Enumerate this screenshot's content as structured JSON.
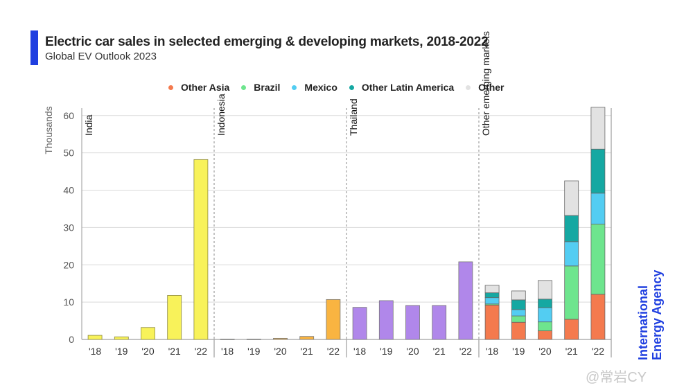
{
  "title": "Electric car sales in selected emerging & developing markets, 2018-2022",
  "subtitle": "Global EV Outlook 2023",
  "brand": {
    "line1": "International",
    "line2": "Energy Agency"
  },
  "watermark": "@常岩CY",
  "colors": {
    "accent": "#1f3fe0",
    "Other Asia": "#f47a4e",
    "Brazil": "#6ee58e",
    "Mexico": "#53cdf2",
    "Other Latin America": "#15a8a2",
    "Other": "#e2e2e2",
    "India": "#f8f25a",
    "India_stroke": "#8a8740",
    "Indonesia": "#f9b441",
    "Thailand": "#b087ea"
  },
  "chart_data": {
    "type": "bar",
    "ylabel": "Thousands",
    "ylim": [
      0,
      62
    ],
    "yticks": [
      "0",
      "10",
      "20",
      "30",
      "40",
      "50",
      "60"
    ],
    "ytick_values": [
      0,
      10,
      20,
      30,
      40,
      50,
      60
    ],
    "grid": true,
    "legend": [
      "Other Asia",
      "Brazil",
      "Mexico",
      "Other Latin America",
      "Other"
    ],
    "legend_placement": "top",
    "x_categories": [
      "'18",
      "'19",
      "'20",
      "'21",
      "'22"
    ],
    "panels": [
      {
        "label": "India",
        "stacked": false,
        "values": [
          1.1,
          0.7,
          3.2,
          11.8,
          48.2
        ]
      },
      {
        "label": "Indonesia",
        "stacked": false,
        "values": [
          0.1,
          0.1,
          0.3,
          0.8,
          10.7
        ]
      },
      {
        "label": "Thailand",
        "stacked": false,
        "values": [
          8.6,
          10.4,
          9.1,
          9.1,
          20.8
        ]
      },
      {
        "label": "Other emerging markets",
        "stacked": true,
        "series": [
          {
            "name": "Other Asia",
            "values": [
              9.2,
              4.6,
              2.3,
              5.4,
              12.1
            ]
          },
          {
            "name": "Brazil",
            "values": [
              0.3,
              1.7,
              2.4,
              14.3,
              18.8
            ]
          },
          {
            "name": "Mexico",
            "values": [
              1.7,
              1.7,
              3.8,
              6.5,
              8.3
            ]
          },
          {
            "name": "Other Latin America",
            "values": [
              1.3,
              2.6,
              2.3,
              7.0,
              11.8
            ]
          },
          {
            "name": "Other",
            "values": [
              2.0,
              2.4,
              5.0,
              9.3,
              11.2
            ]
          }
        ]
      }
    ]
  }
}
